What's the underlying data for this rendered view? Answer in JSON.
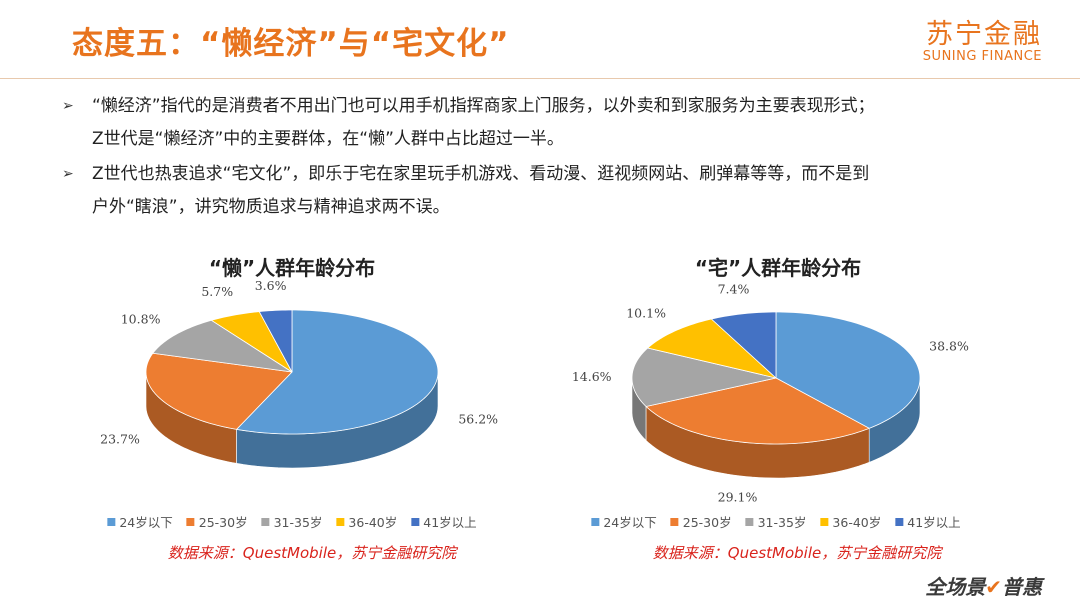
{
  "header": {
    "title": "态度五：“懒经济”与“宅文化”",
    "logo_cn": "苏宁金融",
    "logo_en": "SUNING FINANCE"
  },
  "bullets": [
    {
      "line1": "“懒经济”指代的是消费者不用出门也可以用手机指挥商家上门服务，以外卖和到家服务为主要表现形式；",
      "line2": "Z世代是“懒经济”中的主要群体，在“懒”人群中占比超过一半。"
    },
    {
      "line1": "Z世代也热衷追求“宅文化”，即乐于宅在家里玩手机游戏、看动漫、逛视频网站、刷弹幕等等，而不是到",
      "line2": "户外“瞎浪”，讲究物质追求与精神追求两不误。"
    }
  ],
  "chart_data": [
    {
      "type": "pie",
      "title": "“懒”人群年龄分布",
      "categories": [
        "24岁以下",
        "25-30岁",
        "31-35岁",
        "36-40岁",
        "41岁以上"
      ],
      "values": [
        56.2,
        23.7,
        10.8,
        5.7,
        3.6
      ],
      "value_labels": [
        "56.2%",
        "23.7%",
        "10.8%",
        "5.7%",
        "3.6%"
      ],
      "legend": "bottom",
      "source": "数据来源：QuestMobile，苏宁金融研究院"
    },
    {
      "type": "pie",
      "title": "“宅”人群年龄分布",
      "categories": [
        "24岁以下",
        "25-30岁",
        "31-35岁",
        "36-40岁",
        "41岁以上"
      ],
      "values": [
        38.8,
        29.1,
        14.6,
        10.1,
        7.4
      ],
      "value_labels": [
        "38.8%",
        "29.1%",
        "14.6%",
        "10.1%",
        "7.4%"
      ],
      "legend": "bottom",
      "source": "数据来源：QuestMobile，苏宁金融研究院"
    }
  ],
  "colors": {
    "accent": "#e8741e",
    "series": [
      "#5b9bd5",
      "#ed7d31",
      "#a5a5a5",
      "#ffc000",
      "#4472c4"
    ],
    "source_red": "#d9231c"
  },
  "footer": {
    "brand_part1": "全场景",
    "brand_check": "✔",
    "brand_part2": "普惠"
  }
}
